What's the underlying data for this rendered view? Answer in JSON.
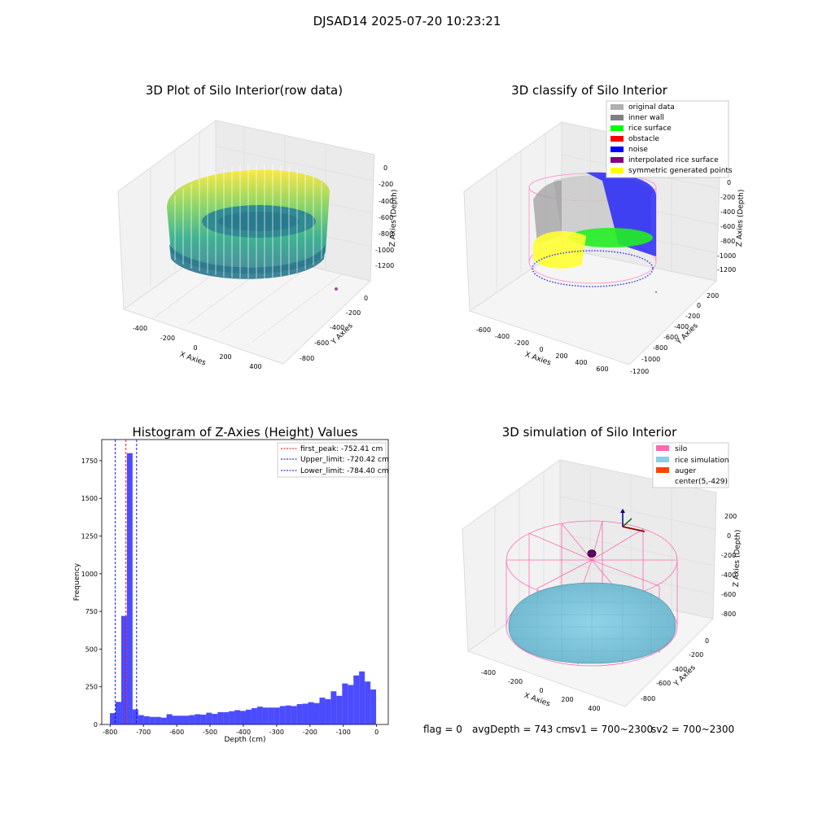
{
  "figure_title": "DJSAD14 2025-07-20 10:23:21",
  "info_line": {
    "flag": "flag = 0",
    "avg_depth": "avgDepth = 743 cm",
    "sv1": "sv1 = 700~2300",
    "sv2": "sv2 = 700~2300"
  },
  "chart_data": [
    {
      "type": "scatter",
      "title": "3D Plot of Silo Interior(row data)",
      "xlabel": "X Axies",
      "ylabel": "Y Axies",
      "zlabel": "Z Axies (Depth)",
      "x_ticks": [
        "-400",
        "-200",
        "0",
        "200",
        "400"
      ],
      "y_ticks": [
        "0",
        "-200",
        "-400",
        "-600",
        "-800"
      ],
      "z_ticks": [
        "0",
        "-200",
        "-400",
        "-600",
        "-800",
        "-1000",
        "-1200"
      ],
      "xlim": [
        -500,
        500
      ],
      "ylim": [
        -900,
        100
      ],
      "zlim": [
        -1300,
        50
      ],
      "colormap": "viridis",
      "points": "point cloud of silo wall and rice surface, colored by depth"
    },
    {
      "type": "scatter",
      "title": "3D classify of Silo Interior",
      "xlabel": "X Axies",
      "ylabel": "Y Axies",
      "zlabel": "Z Axies (Depth)",
      "x_ticks": [
        "-600",
        "-400",
        "-200",
        "0",
        "200",
        "400",
        "600"
      ],
      "y_ticks": [
        "200",
        "0",
        "-200",
        "-400",
        "-600",
        "-800",
        "-1000",
        "-1200"
      ],
      "z_ticks": [
        "0",
        "-200",
        "-400",
        "-600",
        "-800",
        "-1000",
        "-1200"
      ],
      "legend_position": "top-right",
      "legend": [
        {
          "label": "original data",
          "color": "#b0b0b0"
        },
        {
          "label": "inner wall",
          "color": "#808080"
        },
        {
          "label": "rice surface",
          "color": "#00ff00"
        },
        {
          "label": "obstacle",
          "color": "#ff0000"
        },
        {
          "label": "noise",
          "color": "#0000ff"
        },
        {
          "label": "interpolated rice surface",
          "color": "#800080"
        },
        {
          "label": "symmetric generated points",
          "color": "#ffff00"
        }
      ],
      "silo_outline_color": "#ff88cc"
    },
    {
      "type": "bar",
      "title": "Histogram of Z-Axies (Height) Values",
      "xlabel": "Depth (cm)",
      "ylabel": "Frequency",
      "x_ticks": [
        -800,
        -700,
        -600,
        -500,
        -400,
        -300,
        -200,
        -100,
        0
      ],
      "y_ticks": [
        0,
        250,
        500,
        750,
        1000,
        1250,
        1500,
        1750
      ],
      "xlim": [
        -825,
        35
      ],
      "ylim": [
        0,
        1890
      ],
      "bin_width": 17,
      "bar_color": "#0000ff",
      "bins": [
        {
          "x": -792,
          "v": 75
        },
        {
          "x": -775,
          "v": 150
        },
        {
          "x": -758,
          "v": 720
        },
        {
          "x": -741,
          "v": 1800
        },
        {
          "x": -724,
          "v": 100
        },
        {
          "x": -707,
          "v": 62
        },
        {
          "x": -690,
          "v": 55
        },
        {
          "x": -673,
          "v": 50
        },
        {
          "x": -656,
          "v": 50
        },
        {
          "x": -639,
          "v": 45
        },
        {
          "x": -622,
          "v": 68
        },
        {
          "x": -605,
          "v": 58
        },
        {
          "x": -588,
          "v": 58
        },
        {
          "x": -571,
          "v": 58
        },
        {
          "x": -554,
          "v": 62
        },
        {
          "x": -537,
          "v": 68
        },
        {
          "x": -520,
          "v": 65
        },
        {
          "x": -503,
          "v": 78
        },
        {
          "x": -486,
          "v": 70
        },
        {
          "x": -469,
          "v": 82
        },
        {
          "x": -452,
          "v": 82
        },
        {
          "x": -435,
          "v": 88
        },
        {
          "x": -418,
          "v": 95
        },
        {
          "x": -401,
          "v": 90
        },
        {
          "x": -384,
          "v": 98
        },
        {
          "x": -367,
          "v": 108
        },
        {
          "x": -350,
          "v": 118
        },
        {
          "x": -333,
          "v": 112
        },
        {
          "x": -316,
          "v": 112
        },
        {
          "x": -299,
          "v": 112
        },
        {
          "x": -282,
          "v": 122
        },
        {
          "x": -265,
          "v": 126
        },
        {
          "x": -248,
          "v": 122
        },
        {
          "x": -231,
          "v": 135
        },
        {
          "x": -214,
          "v": 138
        },
        {
          "x": -197,
          "v": 148
        },
        {
          "x": -180,
          "v": 142
        },
        {
          "x": -163,
          "v": 178
        },
        {
          "x": -146,
          "v": 168
        },
        {
          "x": -129,
          "v": 220
        },
        {
          "x": -112,
          "v": 190
        },
        {
          "x": -95,
          "v": 272
        },
        {
          "x": -78,
          "v": 262
        },
        {
          "x": -61,
          "v": 325
        },
        {
          "x": -44,
          "v": 352
        },
        {
          "x": -27,
          "v": 285
        },
        {
          "x": -10,
          "v": 232
        }
      ],
      "lines": [
        {
          "label": "first_peak: -752.41 cm",
          "x": -752.41,
          "color": "#ff0000"
        },
        {
          "label": "Upper_limit: -720.42 cm",
          "x": -720.42,
          "color": "#0000ff"
        },
        {
          "label": "Lower_limit: -784.40 cm",
          "x": -784.4,
          "color": "#0000ff"
        }
      ],
      "legend_position": "top-right"
    },
    {
      "type": "scatter",
      "title": "3D simulation of Silo Interior",
      "xlabel": "X Axies",
      "ylabel": "Y Axies",
      "zlabel": "Z Axies (Depth)",
      "x_ticks": [
        "-400",
        "-200",
        "0",
        "200",
        "400"
      ],
      "y_ticks": [
        "0",
        "-200",
        "-400",
        "-600",
        "-800"
      ],
      "z_ticks": [
        "200",
        "0",
        "-200",
        "-400",
        "-600",
        "-800"
      ],
      "legend_position": "top-right",
      "legend": [
        {
          "label": "silo",
          "color": "#ff69b4"
        },
        {
          "label": "rice simulation",
          "color": "#87ceeb"
        },
        {
          "label": "auger",
          "color": "#ff4500"
        },
        {
          "label": "center(5,-429)",
          "color": ""
        }
      ]
    }
  ]
}
